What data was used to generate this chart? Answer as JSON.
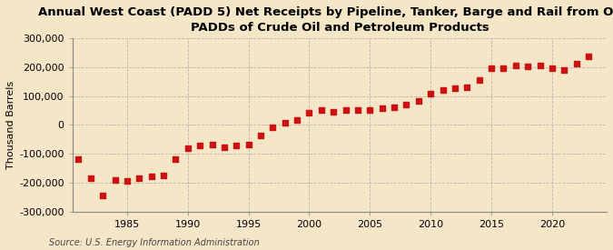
{
  "title": "Annual West Coast (PADD 5) Net Receipts by Pipeline, Tanker, Barge and Rail from Other\nPADDs of Crude Oil and Petroleum Products",
  "ylabel": "Thousand Barrels",
  "source": "Source: U.S. Energy Information Administration",
  "background_color": "#f5e6c8",
  "plot_bg_color": "#f5e6c8",
  "marker_color": "#cc1111",
  "years": [
    1981,
    1982,
    1983,
    1984,
    1985,
    1986,
    1987,
    1988,
    1989,
    1990,
    1991,
    1992,
    1993,
    1994,
    1995,
    1996,
    1997,
    1998,
    1999,
    2000,
    2001,
    2002,
    2003,
    2004,
    2005,
    2006,
    2007,
    2008,
    2009,
    2010,
    2011,
    2012,
    2013,
    2014,
    2015,
    2016,
    2017,
    2018,
    2019,
    2020,
    2021,
    2022,
    2023
  ],
  "values": [
    -120000,
    -185000,
    -245000,
    -190000,
    -195000,
    -185000,
    -180000,
    -175000,
    -120000,
    -80000,
    -70000,
    -68000,
    -78000,
    -72000,
    -68000,
    -35000,
    -8000,
    7000,
    18000,
    42000,
    52000,
    46000,
    52000,
    52000,
    52000,
    57000,
    62000,
    72000,
    82000,
    107000,
    122000,
    127000,
    132000,
    157000,
    197000,
    197000,
    207000,
    202000,
    207000,
    197000,
    192000,
    212000,
    238000
  ],
  "ylim": [
    -300000,
    300000
  ],
  "yticks": [
    -300000,
    -200000,
    -100000,
    0,
    100000,
    200000,
    300000
  ],
  "xlim": [
    1980.5,
    2024.5
  ],
  "xticks": [
    1985,
    1990,
    1995,
    2000,
    2005,
    2010,
    2015,
    2020
  ],
  "grid_color": "#b0b0b0",
  "title_fontsize": 9.5,
  "tick_fontsize": 8,
  "label_fontsize": 8,
  "source_fontsize": 7
}
